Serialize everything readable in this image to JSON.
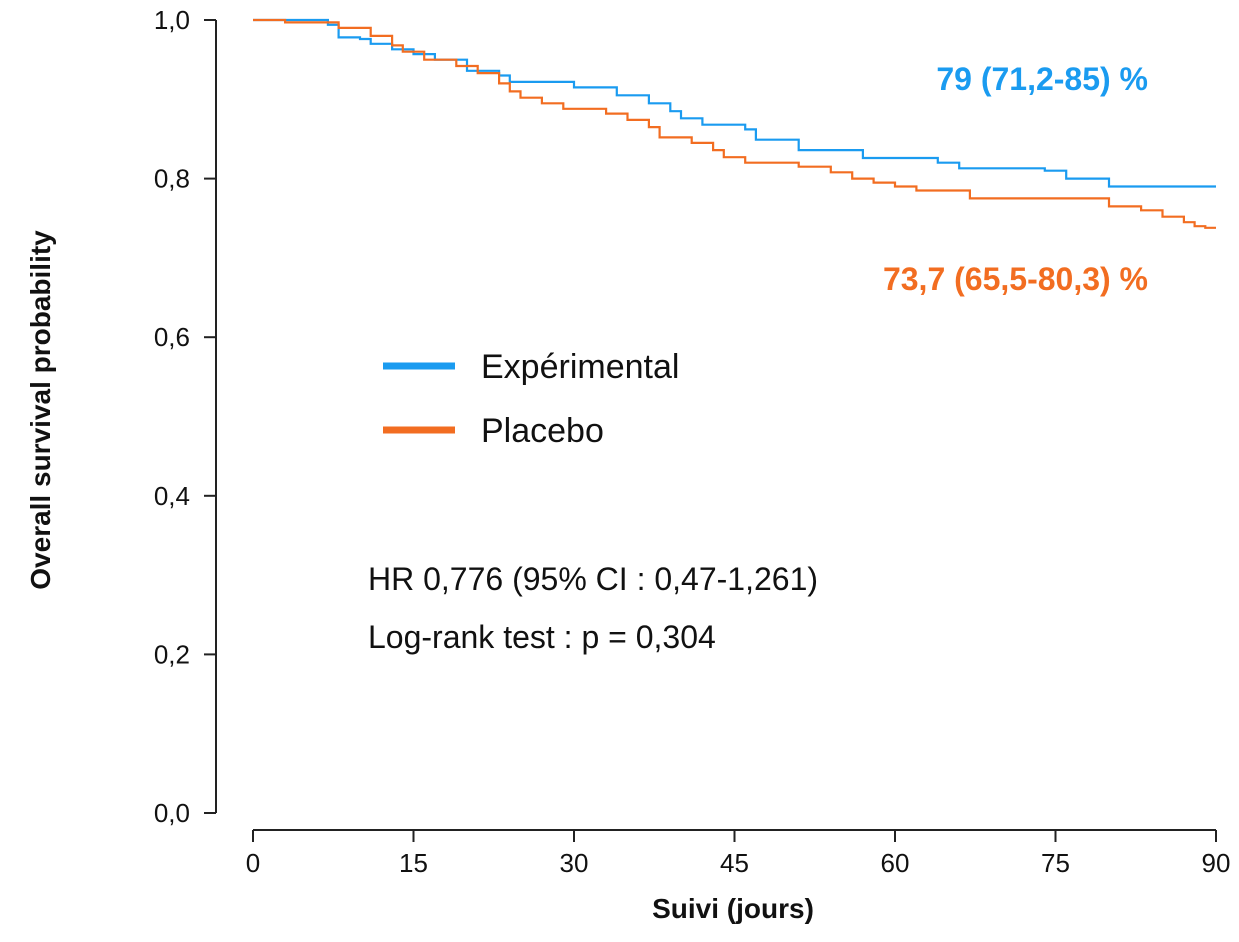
{
  "chart_data": {
    "type": "line",
    "xlabel": "Suivi (jours)",
    "ylabel": "Overall survival probability",
    "xlim": [
      0,
      90
    ],
    "ylim": [
      0,
      1
    ],
    "x_ticks": [
      0,
      15,
      30,
      45,
      60,
      75,
      90
    ],
    "x_tick_labels": [
      "0",
      "15",
      "30",
      "45",
      "60",
      "75",
      "90"
    ],
    "y_ticks": [
      0,
      0.2,
      0.4,
      0.6,
      0.8,
      1.0
    ],
    "y_tick_labels": [
      "0,0",
      "0,2",
      "0,4",
      "0,6",
      "0,8",
      "1,0"
    ],
    "grid": false,
    "legend_position": "center-left",
    "series": [
      {
        "name": "Expérimental",
        "color": "#1a9bf0",
        "x": [
          0,
          7,
          8,
          10,
          11,
          13,
          15,
          17,
          20,
          23,
          24,
          28,
          30,
          34,
          35,
          37,
          39,
          40,
          42,
          46,
          47,
          51,
          57,
          64,
          66,
          74,
          76,
          80,
          90
        ],
        "y": [
          1.0,
          0.994,
          0.978,
          0.976,
          0.97,
          0.963,
          0.957,
          0.95,
          0.936,
          0.93,
          0.922,
          0.922,
          0.915,
          0.905,
          0.905,
          0.895,
          0.885,
          0.876,
          0.868,
          0.862,
          0.849,
          0.836,
          0.826,
          0.82,
          0.813,
          0.81,
          0.8,
          0.79,
          0.79
        ],
        "end_label": "79 (71,2-85) %"
      },
      {
        "name": "Placebo",
        "color": "#f26d21",
        "x": [
          0,
          3,
          8,
          11,
          13,
          14,
          16,
          19,
          21,
          23,
          24,
          25,
          27,
          29,
          33,
          35,
          37,
          38,
          41,
          43,
          44,
          46,
          48,
          51,
          54,
          56,
          58,
          60,
          62,
          67,
          72,
          80,
          83,
          85,
          87,
          88,
          89,
          90
        ],
        "y": [
          1.0,
          0.997,
          0.99,
          0.98,
          0.968,
          0.96,
          0.95,
          0.942,
          0.933,
          0.92,
          0.91,
          0.902,
          0.895,
          0.888,
          0.882,
          0.874,
          0.865,
          0.852,
          0.845,
          0.836,
          0.827,
          0.82,
          0.82,
          0.815,
          0.808,
          0.8,
          0.795,
          0.79,
          0.785,
          0.775,
          0.775,
          0.765,
          0.76,
          0.752,
          0.745,
          0.74,
          0.738,
          0.738
        ],
        "end_label": "73,7 (65,5-80,3) %"
      }
    ],
    "annotations": {
      "hr": "HR 0,776 (95% CI : 0,47-1,261)",
      "logrank": "Log-rank test : p = 0,304"
    }
  }
}
